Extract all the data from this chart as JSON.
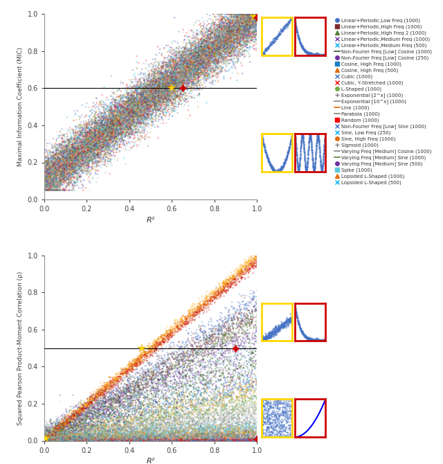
{
  "top_ylabel": "Maximal Information Coefficient (MIC)",
  "bottom_ylabel": "Squared Pearson Product-Moment Correlation (ρ)",
  "xlabel": "R²",
  "top_hline_y": 0.6,
  "bottom_hline_y": 0.5,
  "legend_entries": [
    {
      "label": "Linear+Periodic,Low Freq (1000)",
      "color": "#4472C4",
      "marker": "o"
    },
    {
      "label": "Linear+Periodic,High Freq (1000)",
      "color": "#7B2C2C",
      "marker": "s"
    },
    {
      "label": "Linear+Periodic,High Freq 2 (1000)",
      "color": "#548235",
      "marker": "^"
    },
    {
      "label": "Linear+Periodic,Medium Freq (1000)",
      "color": "#7030A0",
      "marker": "x"
    },
    {
      "label": "Linear+Periodic,Medium Freq (500)",
      "color": "#00B0F0",
      "marker": "x"
    },
    {
      "label": "Non-Fourier Freq [Low] Cosine (1000)",
      "color": "#375623",
      "marker": "-"
    },
    {
      "label": "Non-Fourier Freq [Low] Cosine (250)",
      "color": "#7030A0",
      "marker": "o"
    },
    {
      "label": "Cosine, High Freq (1000)",
      "color": "#1F7FC4",
      "marker": "s"
    },
    {
      "label": "Cosine, High Freq (500)",
      "color": "#E36C09",
      "marker": "^"
    },
    {
      "label": "Cubic (1000)",
      "color": "#4472C4",
      "marker": "x"
    },
    {
      "label": "Cubic, Y-Stretched (1000)",
      "color": "#FF0000",
      "marker": "x"
    },
    {
      "label": "L-Shaped (1000)",
      "color": "#70AD47",
      "marker": "o"
    },
    {
      "label": "Exponential [2^x] (1000)",
      "color": "#808080",
      "marker": "+"
    },
    {
      "label": "Exponential [10^x] (1000)",
      "color": "#808080",
      "marker": "-"
    },
    {
      "label": "Line (1000)",
      "color": "#E36C09",
      "marker": "-"
    },
    {
      "label": "Parabola (1000)",
      "color": "#808080",
      "marker": "-"
    },
    {
      "label": "Random (1000)",
      "color": "#FF0000",
      "marker": "s"
    },
    {
      "label": "Non-Fourier Freq [Low] Sine (1000)",
      "color": "#4472C4",
      "marker": "x"
    },
    {
      "label": "Sine, Low Freq (250)",
      "color": "#00B0F0",
      "marker": "x"
    },
    {
      "label": "Sine, High Freq (1000)",
      "color": "#E36C09",
      "marker": "o"
    },
    {
      "label": "Sigmoid (1000)",
      "color": "#808080",
      "marker": "+"
    },
    {
      "label": "Varying Freq [Medium] Cosine (1000)",
      "color": "#808080",
      "marker": "-"
    },
    {
      "label": "Varying Freq [Medium] Sine (1000)",
      "color": "#548235",
      "marker": "-"
    },
    {
      "label": "Varying Freq [Medium] Sine (500)",
      "color": "#7030A0",
      "marker": "o"
    },
    {
      "label": "Spike (1000)",
      "color": "#5BC8DB",
      "marker": "s"
    },
    {
      "label": "Lopsided L-Shaped (1000)",
      "color": "#E36C09",
      "marker": "^"
    },
    {
      "label": "Lopsided L-Shaped (500)",
      "color": "#00B0F0",
      "marker": "x"
    }
  ],
  "top_series": [
    {
      "color": "#4472C4",
      "n": 1000,
      "base": 0.1,
      "slope": 0.9,
      "spread": 0.07
    },
    {
      "color": "#7B2C2C",
      "n": 1000,
      "base": 0.1,
      "slope": 0.9,
      "spread": 0.07
    },
    {
      "color": "#548235",
      "n": 1000,
      "base": 0.12,
      "slope": 0.88,
      "spread": 0.07
    },
    {
      "color": "#7030A0",
      "n": 1000,
      "base": 0.1,
      "slope": 0.9,
      "spread": 0.07
    },
    {
      "color": "#87CEEB",
      "n": 500,
      "base": 0.1,
      "slope": 0.9,
      "spread": 0.08
    },
    {
      "color": "#375623",
      "n": 1000,
      "base": 0.1,
      "slope": 0.9,
      "spread": 0.06
    },
    {
      "color": "#6A0DAD",
      "n": 250,
      "base": 0.12,
      "slope": 0.88,
      "spread": 0.09
    },
    {
      "color": "#1F7FC4",
      "n": 1000,
      "base": 0.1,
      "slope": 0.9,
      "spread": 0.07
    },
    {
      "color": "#E36C09",
      "n": 500,
      "base": 0.12,
      "slope": 0.88,
      "spread": 0.08
    },
    {
      "color": "#4472C4",
      "n": 1000,
      "base": 0.1,
      "slope": 0.9,
      "spread": 0.07
    },
    {
      "color": "#CC0000",
      "n": 1000,
      "base": 0.1,
      "slope": 0.9,
      "spread": 0.07
    },
    {
      "color": "#70AD47",
      "n": 1000,
      "base": 0.1,
      "slope": 0.9,
      "spread": 0.07
    },
    {
      "color": "#888888",
      "n": 1000,
      "base": 0.1,
      "slope": 0.9,
      "spread": 0.07
    },
    {
      "color": "#AAAAAA",
      "n": 1000,
      "base": 0.1,
      "slope": 0.9,
      "spread": 0.06
    },
    {
      "color": "#E8A020",
      "n": 1000,
      "base": 0.1,
      "slope": 0.9,
      "spread": 0.06
    },
    {
      "color": "#C0C0C0",
      "n": 1000,
      "base": 0.1,
      "slope": 0.9,
      "spread": 0.07
    },
    {
      "color": "#FF0000",
      "n": 1000,
      "base": 0.1,
      "slope": 0.9,
      "spread": 0.08
    },
    {
      "color": "#4472C4",
      "n": 1000,
      "base": 0.1,
      "slope": 0.9,
      "spread": 0.07
    },
    {
      "color": "#00BFFF",
      "n": 250,
      "base": 0.12,
      "slope": 0.88,
      "spread": 0.09
    },
    {
      "color": "#FFA500",
      "n": 1000,
      "base": 0.1,
      "slope": 0.9,
      "spread": 0.06
    },
    {
      "color": "#999999",
      "n": 1000,
      "base": 0.1,
      "slope": 0.9,
      "spread": 0.07
    },
    {
      "color": "#BBBBBB",
      "n": 1000,
      "base": 0.1,
      "slope": 0.9,
      "spread": 0.06
    },
    {
      "color": "#548235",
      "n": 1000,
      "base": 0.1,
      "slope": 0.9,
      "spread": 0.07
    },
    {
      "color": "#7030A0",
      "n": 500,
      "base": 0.1,
      "slope": 0.9,
      "spread": 0.08
    },
    {
      "color": "#5BC8DB",
      "n": 1000,
      "base": 0.1,
      "slope": 0.9,
      "spread": 0.07
    },
    {
      "color": "#FFA07A",
      "n": 1000,
      "base": 0.1,
      "slope": 0.9,
      "spread": 0.07
    },
    {
      "color": "#00B0F0",
      "n": 500,
      "base": 0.1,
      "slope": 0.9,
      "spread": 0.08
    }
  ],
  "bottom_series": [
    {
      "color": "#FFA500",
      "n": 1000,
      "slope": 1.0,
      "spread": 0.015
    },
    {
      "color": "#E36C09",
      "n": 1000,
      "slope": 0.98,
      "spread": 0.015
    },
    {
      "color": "#CC0000",
      "n": 1000,
      "slope": 0.96,
      "spread": 0.015
    },
    {
      "color": "#4472C4",
      "n": 1000,
      "slope": 0.75,
      "spread": 0.04
    },
    {
      "color": "#7B2C2C",
      "n": 1000,
      "slope": 0.7,
      "spread": 0.04
    },
    {
      "color": "#548235",
      "n": 1000,
      "slope": 0.65,
      "spread": 0.04
    },
    {
      "color": "#7030A0",
      "n": 1000,
      "slope": 0.58,
      "spread": 0.05
    },
    {
      "color": "#87CEEB",
      "n": 500,
      "slope": 0.52,
      "spread": 0.05
    },
    {
      "color": "#375623",
      "n": 1000,
      "slope": 0.45,
      "spread": 0.05
    },
    {
      "color": "#6A0DAD",
      "n": 250,
      "slope": 0.38,
      "spread": 0.06
    },
    {
      "color": "#1F7FC4",
      "n": 1000,
      "slope": 0.32,
      "spread": 0.05
    },
    {
      "color": "#E8A020",
      "n": 1000,
      "slope": 0.28,
      "spread": 0.04
    },
    {
      "color": "#70AD47",
      "n": 1000,
      "slope": 0.22,
      "spread": 0.04
    },
    {
      "color": "#C0C0C0",
      "n": 1000,
      "slope": 0.18,
      "spread": 0.03
    },
    {
      "color": "#888888",
      "n": 1000,
      "slope": 0.14,
      "spread": 0.03
    },
    {
      "color": "#AAAAAA",
      "n": 1000,
      "slope": 0.1,
      "spread": 0.03
    },
    {
      "color": "#5BC8DB",
      "n": 1000,
      "slope": 0.08,
      "spread": 0.02
    },
    {
      "color": "#00BFFF",
      "n": 250,
      "slope": 0.07,
      "spread": 0.02
    },
    {
      "color": "#FFA500",
      "n": 1000,
      "slope": 0.06,
      "spread": 0.02
    },
    {
      "color": "#999999",
      "n": 1000,
      "slope": 0.05,
      "spread": 0.02
    },
    {
      "color": "#BBBBBB",
      "n": 1000,
      "slope": 0.04,
      "spread": 0.015
    },
    {
      "color": "#548235",
      "n": 1000,
      "slope": 0.03,
      "spread": 0.015
    },
    {
      "color": "#7030A0",
      "n": 500,
      "slope": 0.025,
      "spread": 0.015
    },
    {
      "color": "#FFA07A",
      "n": 1000,
      "slope": 0.02,
      "spread": 0.01
    },
    {
      "color": "#00B0F0",
      "n": 500,
      "slope": 0.015,
      "spread": 0.01
    },
    {
      "color": "#FF0000",
      "n": 1000,
      "slope": 0.005,
      "spread": 0.005
    },
    {
      "color": "#4472C4",
      "n": 1000,
      "slope": 0.003,
      "spread": 0.003
    }
  ]
}
